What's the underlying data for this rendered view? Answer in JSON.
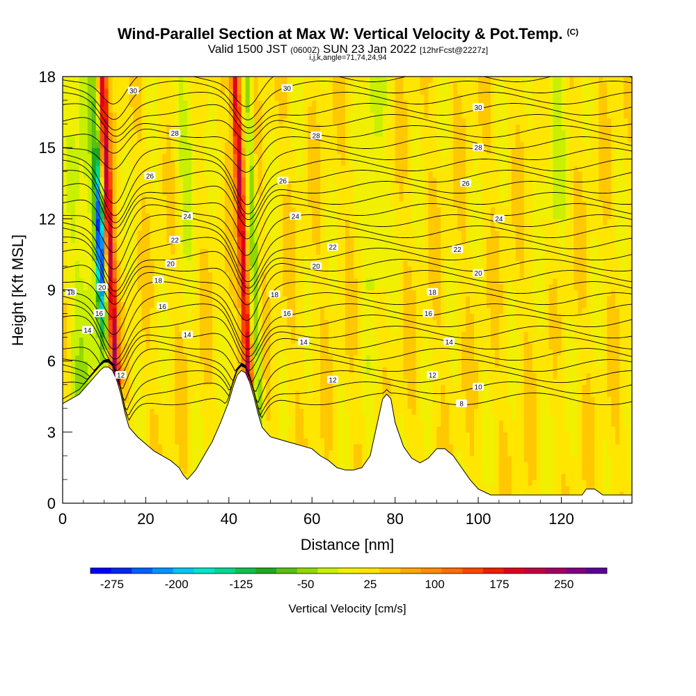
{
  "header": {
    "title": "Wind-Parallel Section at Max W: Vertical Velocity & Pot.Temp.",
    "copyright_mark": "(C)",
    "subtitle_main_a": "Valid 1500 JST",
    "subtitle_zulu": "(0600Z)",
    "subtitle_main_b": "SUN 23 Jan 2022",
    "subtitle_forecast": "[12hrFcst@2227z]",
    "params": "i,j,k,angle=71,74,24,94"
  },
  "chart_data": {
    "type": "heatmap",
    "title": "Wind-Parallel Section at Max W: Vertical Velocity & Pot.Temp.",
    "xlabel": "Distance [nm]",
    "ylabel": "Height [Kft MSL]",
    "xlim": [
      0,
      137
    ],
    "ylim": [
      0,
      18
    ],
    "x_ticks": [
      "0",
      "20",
      "40",
      "60",
      "80",
      "100",
      "120"
    ],
    "y_ticks": [
      "0",
      "3",
      "6",
      "9",
      "12",
      "15",
      "18"
    ],
    "colorbar": {
      "label": "Vertical Velocity [cm/s]",
      "range": [
        -300,
        300
      ],
      "tick_labels": [
        "-275",
        "-200",
        "-125",
        "-50",
        "25",
        "100",
        "175",
        "250"
      ],
      "tick_values": [
        -275,
        -200,
        -125,
        -50,
        25,
        100,
        175,
        250
      ],
      "colors": [
        "#0000ff",
        "#0028f0",
        "#0060ff",
        "#0094ff",
        "#00c8f0",
        "#00e6c8",
        "#00d890",
        "#10c050",
        "#20a820",
        "#58c010",
        "#90d800",
        "#c8f000",
        "#f0f000",
        "#ffe600",
        "#ffc800",
        "#ffa800",
        "#ff8c00",
        "#ff6e00",
        "#ff4600",
        "#f01e00",
        "#e0001e",
        "#c00040",
        "#a00060",
        "#800080",
        "#5a0096"
      ]
    },
    "terrain_profile": {
      "x": [
        0,
        2,
        4,
        5,
        6,
        7,
        8,
        9,
        10,
        11,
        12,
        13,
        14,
        15,
        16,
        18,
        20,
        22,
        24,
        26,
        28,
        29,
        30,
        32,
        34,
        36,
        38,
        40,
        41,
        42,
        43,
        44,
        45,
        46,
        47,
        48,
        50,
        52,
        54,
        56,
        58,
        60,
        62,
        64,
        66,
        68,
        70,
        72,
        74,
        75,
        76,
        77,
        78,
        79,
        80,
        82,
        84,
        86,
        88,
        90,
        92,
        94,
        96,
        98,
        100,
        103,
        106,
        110,
        115,
        120,
        125,
        126,
        128,
        130,
        132,
        134,
        137
      ],
      "height_kft": [
        4.2,
        4.4,
        4.6,
        4.8,
        5.0,
        5.2,
        5.4,
        5.6,
        5.75,
        5.75,
        5.6,
        5.2,
        4.6,
        3.8,
        3.2,
        2.8,
        2.5,
        2.2,
        2.0,
        1.8,
        1.5,
        1.2,
        1.0,
        1.4,
        2.0,
        2.6,
        3.4,
        4.3,
        4.9,
        5.4,
        5.6,
        5.5,
        5.1,
        4.5,
        3.8,
        3.2,
        2.8,
        2.7,
        2.6,
        2.5,
        2.4,
        2.3,
        2.0,
        1.8,
        1.5,
        1.4,
        1.4,
        1.5,
        2.0,
        2.8,
        3.6,
        4.4,
        4.6,
        4.4,
        3.4,
        2.4,
        1.9,
        1.7,
        1.9,
        2.3,
        2.3,
        2.0,
        1.5,
        1.0,
        0.6,
        0.35,
        0.35,
        0.35,
        0.35,
        0.35,
        0.35,
        0.6,
        0.6,
        0.35,
        0.35,
        0.35,
        0.35
      ]
    },
    "updraft_bands": [
      {
        "x": 12.5,
        "peak_cm_s": 200
      },
      {
        "x": 44.5,
        "peak_cm_s": 190
      }
    ],
    "downdraft_bands": [
      {
        "x": 10.0,
        "peak_cm_s": -275
      },
      {
        "x": 47.0,
        "peak_cm_s": -100
      }
    ],
    "isentrope_labels": [
      {
        "text": "30",
        "x": 17,
        "y": 17.4
      },
      {
        "text": "30",
        "x": 54,
        "y": 17.5
      },
      {
        "text": "30",
        "x": 100,
        "y": 16.7
      },
      {
        "text": "28",
        "x": 27,
        "y": 15.6
      },
      {
        "text": "28",
        "x": 61,
        "y": 15.5
      },
      {
        "text": "28",
        "x": 100,
        "y": 15.0
      },
      {
        "text": "26",
        "x": 21,
        "y": 13.8
      },
      {
        "text": "26",
        "x": 53,
        "y": 13.6
      },
      {
        "text": "26",
        "x": 97,
        "y": 13.5
      },
      {
        "text": "24",
        "x": 30,
        "y": 12.1
      },
      {
        "text": "24",
        "x": 56,
        "y": 12.1
      },
      {
        "text": "24",
        "x": 105,
        "y": 12.0
      },
      {
        "text": "22",
        "x": 27,
        "y": 11.1
      },
      {
        "text": "22",
        "x": 65,
        "y": 10.8
      },
      {
        "text": "22",
        "x": 95,
        "y": 10.7
      },
      {
        "text": "20",
        "x": 26,
        "y": 10.1
      },
      {
        "text": "20",
        "x": 61,
        "y": 10.0
      },
      {
        "text": "20",
        "x": 100,
        "y": 9.7
      },
      {
        "text": "18",
        "x": 2,
        "y": 8.9
      },
      {
        "text": "20",
        "x": 9.5,
        "y": 9.1
      },
      {
        "text": "18",
        "x": 23,
        "y": 9.4
      },
      {
        "text": "18",
        "x": 51,
        "y": 8.8
      },
      {
        "text": "18",
        "x": 89,
        "y": 8.9
      },
      {
        "text": "16",
        "x": 8.8,
        "y": 8.0
      },
      {
        "text": "16",
        "x": 24,
        "y": 8.3
      },
      {
        "text": "16",
        "x": 54,
        "y": 8.0
      },
      {
        "text": "16",
        "x": 88,
        "y": 8.0
      },
      {
        "text": "14",
        "x": 6,
        "y": 7.3
      },
      {
        "text": "14",
        "x": 30,
        "y": 7.1
      },
      {
        "text": "14",
        "x": 58,
        "y": 6.8
      },
      {
        "text": "14",
        "x": 93,
        "y": 6.8
      },
      {
        "text": "12",
        "x": 14,
        "y": 5.4
      },
      {
        "text": "12",
        "x": 65,
        "y": 5.2
      },
      {
        "text": "12",
        "x": 89,
        "y": 5.4
      },
      {
        "text": "10",
        "x": 100,
        "y": 4.9
      },
      {
        "text": "8",
        "x": 96,
        "y": 4.2
      }
    ]
  }
}
